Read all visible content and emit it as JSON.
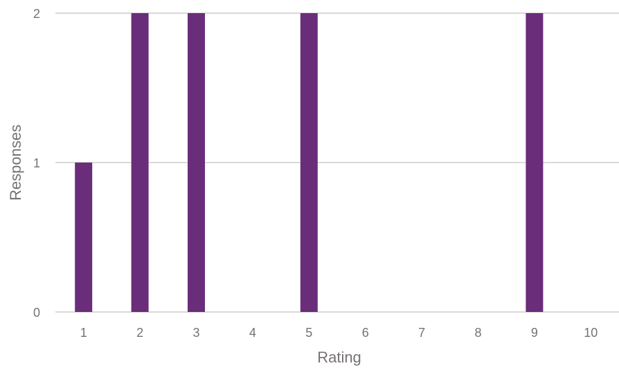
{
  "chart_data": {
    "type": "bar",
    "title": "",
    "xlabel": "Rating",
    "ylabel": "Responses",
    "categories": [
      "1",
      "2",
      "3",
      "4",
      "5",
      "6",
      "7",
      "8",
      "9",
      "10"
    ],
    "values": [
      1,
      2,
      2,
      0,
      2,
      0,
      0,
      0,
      2,
      0
    ],
    "ylim": [
      0,
      2
    ],
    "yticks": [
      "0",
      "1",
      "2"
    ],
    "grid": true,
    "legend": "none",
    "colors": {
      "bar": "#6a2d7a",
      "grid": "#d9d9d9",
      "text": "#767171"
    }
  }
}
